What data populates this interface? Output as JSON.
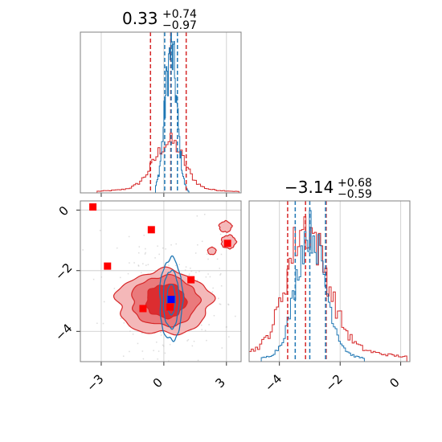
{
  "chart_data": {
    "type": "corner",
    "grid": true,
    "colors": {
      "red": "#d62728",
      "blue": "#1f77b4",
      "red_fill_outer": "#f4b8b9",
      "red_fill_mid": "#ea7a7c",
      "red_fill_inner": "#dc2d30",
      "marker_red": "#ff0000",
      "marker_blue": "#0000ff"
    },
    "parameters": [
      {
        "title_value": "0.33",
        "title_plus": "+0.74",
        "title_minus": "−0.97",
        "median": 0.33,
        "plus": 0.74,
        "minus": 0.97,
        "red_quantiles": [
          -0.64,
          0.33,
          1.07
        ],
        "blue_quantiles": [
          0.04,
          0.35,
          0.65
        ],
        "xlim": [
          -4.0,
          3.7
        ],
        "xticks": [
          -3,
          0,
          3
        ],
        "xticklabels": [
          "−3",
          "0",
          "3"
        ]
      },
      {
        "title_value": "−3.14",
        "title_plus": "+0.68",
        "title_minus": "−0.59",
        "median": -3.14,
        "plus": 0.68,
        "minus": 0.59,
        "red_quantiles": [
          -3.73,
          -3.14,
          -2.46
        ],
        "blue_quantiles": [
          -3.48,
          -3.0,
          -2.48
        ],
        "xlim": [
          -5.0,
          0.3
        ],
        "xticks": [
          -4,
          -2,
          0
        ],
        "xticklabels": [
          "−4",
          "−2",
          "0"
        ]
      }
    ],
    "joint": {
      "xlim": [
        -4.0,
        3.7
      ],
      "ylim": [
        -5.0,
        0.3
      ],
      "xticks": [
        -3,
        0,
        3
      ],
      "xticklabels": [
        "−3",
        "0",
        "3"
      ],
      "yticks": [
        0,
        -2,
        -4
      ],
      "yticklabels": [
        "0",
        "−2",
        "−4"
      ],
      "red_markers": [
        {
          "x": -3.4,
          "y": 0.1
        },
        {
          "x": -0.6,
          "y": -0.65
        },
        {
          "x": -2.7,
          "y": -1.85
        },
        {
          "x": 3.05,
          "y": -1.1
        },
        {
          "x": 1.3,
          "y": -2.3
        },
        {
          "x": -1.0,
          "y": -3.25
        },
        {
          "x": 0.3,
          "y": -3.2
        }
      ],
      "blue_marker": {
        "x": 0.35,
        "y": -2.95
      }
    }
  }
}
